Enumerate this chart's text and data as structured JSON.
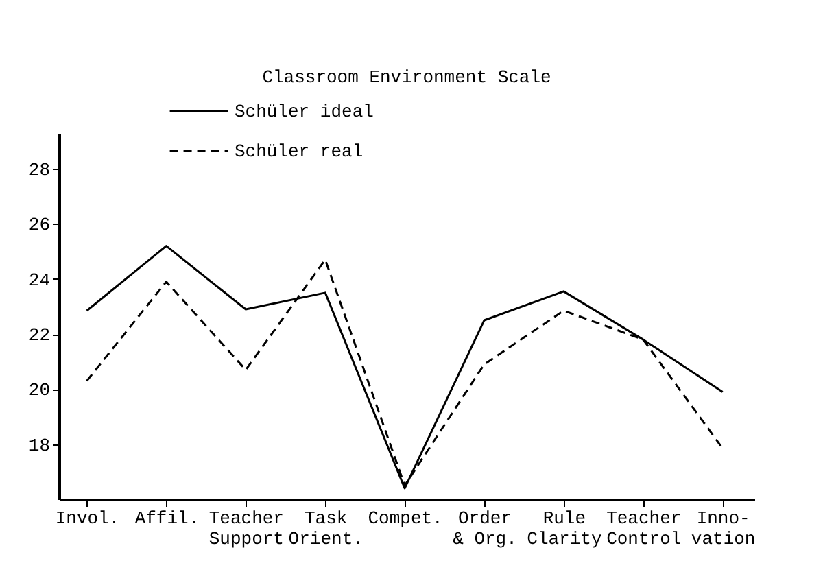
{
  "chart_data": {
    "type": "line",
    "title": "Classroom Environment Scale",
    "categories": [
      "Invol.",
      "Affil.",
      "Teacher\nSupport",
      "Task\nOrient.",
      "Compet.",
      "Order\n& Org.",
      "Rule\nClarity",
      "Teacher\nControl",
      "Inno-\nvation"
    ],
    "series": [
      {
        "name": "Schüler ideal",
        "color": "#000000",
        "line_style": "solid",
        "values": [
          22.85,
          25.2,
          22.9,
          23.5,
          16.4,
          22.5,
          23.55,
          21.8,
          19.9
        ]
      },
      {
        "name": "Schüler real",
        "color": "#000000",
        "line_style": "dashed",
        "values": [
          20.3,
          23.9,
          20.7,
          24.7,
          16.5,
          20.9,
          22.85,
          21.8,
          17.85
        ]
      }
    ],
    "ylim": [
      16,
      29.3
    ],
    "yticks": [
      18,
      20,
      22,
      24,
      26,
      28
    ],
    "grid": false,
    "legend": "top",
    "marker": "none"
  }
}
